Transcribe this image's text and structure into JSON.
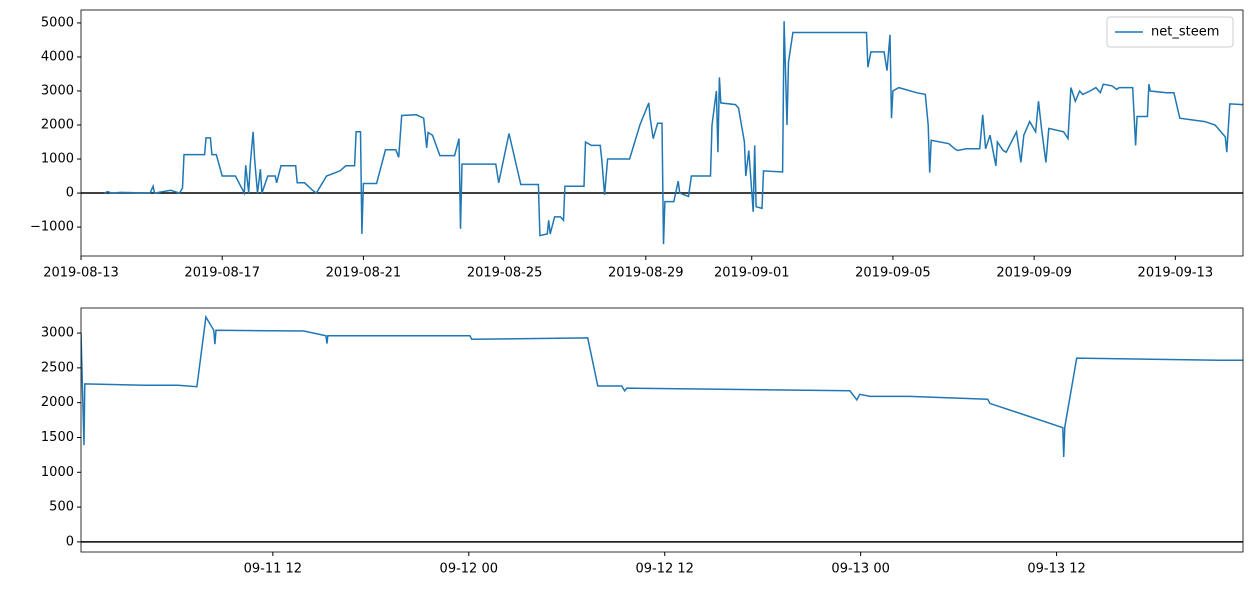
{
  "chart_data": [
    {
      "type": "line",
      "x": [
        "2019-08-13 16:00",
        "2019-08-13 18:00",
        "2019-08-13 21:00",
        "2019-08-14 03:00",
        "2019-08-14 23:00",
        "2019-08-15 01:00",
        "2019-08-15 02:00",
        "2019-08-15 13:00",
        "2019-08-15 19:00",
        "2019-08-15 21:00",
        "2019-08-15 22:00",
        "2019-08-16 12:00",
        "2019-08-16 13:00",
        "2019-08-16 16:00",
        "2019-08-16 17:00",
        "2019-08-16 20:00",
        "2019-08-17 00:00",
        "2019-08-17 09:00",
        "2019-08-17 15:00",
        "2019-08-17 16:00",
        "2019-08-17 18:00",
        "2019-08-17 19:00",
        "2019-08-17 21:00",
        "2019-08-17 22:00",
        "2019-08-18 00:00",
        "2019-08-18 02:00",
        "2019-08-18 03:00",
        "2019-08-18 07:00",
        "2019-08-18 12:00",
        "2019-08-18 13:00",
        "2019-08-18 16:00",
        "2019-08-19 02:00",
        "2019-08-19 03:00",
        "2019-08-19 08:00",
        "2019-08-19 13:00",
        "2019-08-19 16:00",
        "2019-08-19 23:00",
        "2019-08-20 08:00",
        "2019-08-20 12:00",
        "2019-08-20 18:00",
        "2019-08-20 19:00",
        "2019-08-20 22:00",
        "2019-08-20 23:00",
        "2019-08-21 00:00",
        "2019-08-21 09:00",
        "2019-08-21 15:00",
        "2019-08-21 22:00",
        "2019-08-22 00:00",
        "2019-08-22 02:00",
        "2019-08-22 12:00",
        "2019-08-22 17:00",
        "2019-08-22 19:00",
        "2019-08-22 20:00",
        "2019-08-22 23:00",
        "2019-08-23 04:00",
        "2019-08-23 14:00",
        "2019-08-23 17:00",
        "2019-08-23 18:00",
        "2019-08-23 19:00",
        "2019-08-24 18:00",
        "2019-08-24 20:00",
        "2019-08-25 03:00",
        "2019-08-25 11:00",
        "2019-08-25 23:00",
        "2019-08-26 00:00",
        "2019-08-26 05:00",
        "2019-08-26 06:00",
        "2019-08-26 07:00",
        "2019-08-26 10:00",
        "2019-08-26 14:00",
        "2019-08-26 16:00",
        "2019-08-26 17:00",
        "2019-08-27 06:00",
        "2019-08-27 07:00",
        "2019-08-27 11:00",
        "2019-08-27 17:00",
        "2019-08-27 18:00",
        "2019-08-27 20:00",
        "2019-08-27 22:00",
        "2019-08-28 13:00",
        "2019-08-28 20:00",
        "2019-08-29 02:00",
        "2019-08-29 03:00",
        "2019-08-29 05:00",
        "2019-08-29 08:00",
        "2019-08-29 11:00",
        "2019-08-29 12:00",
        "2019-08-29 13:00",
        "2019-08-29 19:00",
        "2019-08-29 22:00",
        "2019-08-29 23:00",
        "2019-08-30 05:00",
        "2019-08-30 07:00",
        "2019-08-30 20:00",
        "2019-08-30 21:00",
        "2019-08-31 00:00",
        "2019-08-31 01:00",
        "2019-08-31 02:00",
        "2019-08-31 03:00",
        "2019-08-31 13:00",
        "2019-08-31 15:00",
        "2019-08-31 19:00",
        "2019-08-31 20:00",
        "2019-08-31 22:00",
        "2019-09-01 01:00",
        "2019-09-01 02:00",
        "2019-09-01 03:00",
        "2019-09-01 07:00",
        "2019-09-01 08:00",
        "2019-09-01 21:00",
        "2019-09-01 22:00",
        "2019-09-02 00:00",
        "2019-09-02 01:00",
        "2019-09-02 04:00",
        "2019-09-04 06:00",
        "2019-09-04 07:00",
        "2019-09-04 09:00",
        "2019-09-04 18:00",
        "2019-09-04 20:00",
        "2019-09-04 22:00",
        "2019-09-04 23:00",
        "2019-09-05 00:00",
        "2019-09-05 04:00",
        "2019-09-05 16:00",
        "2019-09-05 22:00",
        "2019-09-06 00:00",
        "2019-09-06 01:00",
        "2019-09-06 02:00",
        "2019-09-06 14:00",
        "2019-09-06 18:00",
        "2019-09-06 20:00",
        "2019-09-07 02:00",
        "2019-09-07 11:00",
        "2019-09-07 13:00",
        "2019-09-07 15:00",
        "2019-09-07 18:00",
        "2019-09-07 22:00",
        "2019-09-07 23:00",
        "2019-09-08 03:00",
        "2019-09-08 05:00",
        "2019-09-08 12:00",
        "2019-09-08 15:00",
        "2019-09-08 17:00",
        "2019-09-08 21:00",
        "2019-09-09 01:00",
        "2019-09-09 03:00",
        "2019-09-09 05:00",
        "2019-09-09 08:00",
        "2019-09-09 10:00",
        "2019-09-09 20:00",
        "2019-09-09 23:00",
        "2019-09-10 01:00",
        "2019-09-10 04:00",
        "2019-09-10 07:00",
        "2019-09-10 09:00",
        "2019-09-10 14:00",
        "2019-09-10 18:00",
        "2019-09-10 21:00",
        "2019-09-10 23:00",
        "2019-09-11 05:00",
        "2019-09-11 08:00",
        "2019-09-11 10:00",
        "2019-09-11 19:00",
        "2019-09-11 21:00",
        "2019-09-11 22:00",
        "2019-09-12 05:00",
        "2019-09-12 06:00",
        "2019-09-12 07:00",
        "2019-09-12 18:00",
        "2019-09-12 23:00",
        "2019-09-13 03:00",
        "2019-09-13 20:00",
        "2019-09-14 03:00",
        "2019-09-14 10:00",
        "2019-09-14 11:00",
        "2019-09-14 13:00",
        "2019-09-14 22:00"
      ],
      "series": [
        {
          "name": "net_steem",
          "color": "#1f77b4",
          "values": [
            0,
            40,
            0,
            20,
            0,
            200,
            0,
            80,
            0,
            150,
            1130,
            1130,
            1620,
            1620,
            1130,
            1130,
            500,
            500,
            0,
            820,
            0,
            820,
            1800,
            1000,
            0,
            700,
            0,
            500,
            500,
            300,
            800,
            800,
            300,
            300,
            100,
            0,
            500,
            650,
            800,
            800,
            1800,
            1800,
            -1200,
            280,
            280,
            1270,
            1270,
            1050,
            2280,
            2300,
            2200,
            1330,
            1780,
            1700,
            1100,
            1100,
            1600,
            -1050,
            850,
            850,
            300,
            1750,
            250,
            250,
            -1250,
            -1200,
            -800,
            -1200,
            -700,
            -700,
            -800,
            200,
            200,
            1500,
            1400,
            1400,
            1000,
            -50,
            1000,
            1000,
            2000,
            2650,
            2200,
            1600,
            2050,
            2050,
            -1500,
            -250,
            -250,
            350,
            0,
            -100,
            500,
            500,
            2000,
            3000,
            1200,
            3400,
            2650,
            2600,
            2500,
            1500,
            500,
            1250,
            -550,
            1400,
            -400,
            -450,
            650,
            620,
            5050,
            2000,
            3850,
            4720,
            4720,
            3700,
            4150,
            4150,
            3600,
            4650,
            2200,
            3000,
            3100,
            2950,
            2900,
            2000,
            600,
            1550,
            1450,
            1300,
            1250,
            1300,
            1300,
            2300,
            1300,
            1700,
            800,
            1500,
            1250,
            1200,
            1800,
            900,
            1700,
            2100,
            1800,
            2700,
            1900,
            900,
            1900,
            1800,
            1600,
            3100,
            2700,
            3000,
            2900,
            3000,
            3100,
            2950,
            3200,
            3150,
            3050,
            3100,
            3100,
            1400,
            2250,
            2250,
            3200,
            3000,
            2950,
            2950,
            2200,
            2100,
            2000,
            1650,
            1200,
            2620,
            2600
          ]
        }
      ],
      "xlim": [
        "2019-08-13 00:00",
        "2019-09-14 22:00"
      ],
      "xticks": [
        "2019-08-13",
        "2019-08-17",
        "2019-08-21",
        "2019-08-25",
        "2019-08-29",
        "2019-09-01",
        "2019-09-05",
        "2019-09-09",
        "2019-09-13"
      ],
      "ylim": [
        -1850,
        5380
      ],
      "yticks": [
        {
          "value": -1000,
          "label": "−1000"
        },
        0,
        1000,
        2000,
        3000,
        4000,
        5000
      ],
      "hline": 0,
      "hline_color": "#000000",
      "legend": "upper right"
    },
    {
      "type": "line",
      "x": [
        "09-11 00:15",
        "09-11 00:26",
        "09-11 00:29",
        "09-11 04:10",
        "09-11 06:11",
        "09-11 07:21",
        "09-11 07:54",
        "09-11 08:23",
        "09-11 08:27",
        "09-11 08:31",
        "09-11 13:54",
        "09-11 15:15",
        "09-11 15:19",
        "09-11 15:22",
        "09-12 00:04",
        "09-12 00:11",
        "09-12 07:17",
        "09-12 07:54",
        "09-12 09:22",
        "09-12 09:33",
        "09-12 09:41",
        "09-12 23:20",
        "09-12 23:38",
        "09-12 23:46",
        "09-12 23:57",
        "09-13 00:34",
        "09-13 03:00",
        "09-13 07:47",
        "09-13 07:55",
        "09-13 12:23",
        "09-13 12:26",
        "09-13 12:30",
        "09-13 13:14",
        "09-13 21:59",
        "09-13 23:24"
      ],
      "series": [
        {
          "color": "#1f77b4",
          "values": [
            3000,
            1390,
            2270,
            2250,
            2250,
            2230,
            3230,
            3040,
            2840,
            3040,
            3030,
            2960,
            2850,
            2960,
            2960,
            2910,
            2930,
            2240,
            2240,
            2170,
            2210,
            2170,
            2080,
            2040,
            2120,
            2090,
            2090,
            2050,
            1990,
            1640,
            1220,
            1650,
            2640,
            2610,
            2610
          ]
        }
      ],
      "xlim": [
        "09-11 00:15",
        "09-13 23:25"
      ],
      "xticks": [
        "09-11 12",
        "09-12 00",
        "09-12 12",
        "09-13 00",
        "09-13 12"
      ],
      "ylim": [
        -145,
        3360
      ],
      "yticks": [
        0,
        500,
        1000,
        1500,
        2000,
        2500,
        3000
      ],
      "hline": 0,
      "hline_color": "#000000"
    }
  ]
}
